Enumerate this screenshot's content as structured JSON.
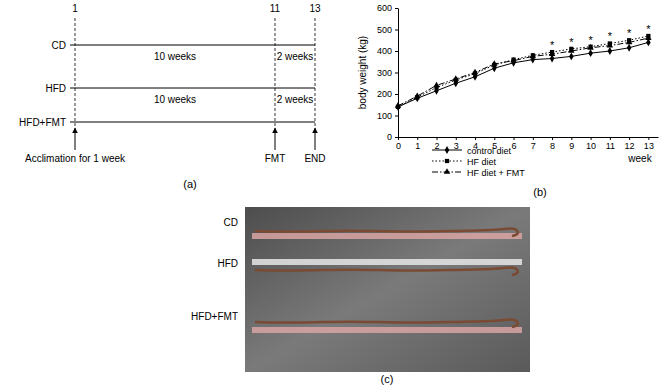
{
  "chart_data": {
    "type": "line",
    "x_label": "week",
    "y_label": "body weight (kg)",
    "x": [
      0,
      1,
      2,
      3,
      4,
      5,
      6,
      7,
      8,
      9,
      10,
      11,
      12,
      13
    ],
    "series": [
      {
        "name": "control diet",
        "color": "#000000",
        "marker": "diamond",
        "line_style": "solid",
        "values": [
          140,
          180,
          215,
          250,
          280,
          320,
          345,
          360,
          365,
          375,
          390,
          400,
          415,
          440
        ]
      },
      {
        "name": "HF diet",
        "color": "#000000",
        "marker": "square",
        "line_style": "dotted",
        "values": [
          140,
          185,
          230,
          265,
          295,
          335,
          360,
          380,
          395,
          410,
          420,
          435,
          450,
          470
        ]
      },
      {
        "name": "HF diet + FMT",
        "color": "#000000",
        "marker": "triangle",
        "line_style": "dashdot",
        "values": [
          145,
          190,
          240,
          270,
          300,
          340,
          355,
          375,
          385,
          400,
          415,
          425,
          440,
          460
        ]
      }
    ],
    "xlim": [
      0,
      13.5
    ],
    "xticks": [
      0,
      1,
      2,
      3,
      4,
      5,
      6,
      7,
      8,
      9,
      10,
      11,
      12,
      13
    ],
    "ylim": [
      0,
      600
    ],
    "yticks": [
      0,
      100,
      200,
      300,
      400,
      500,
      600
    ],
    "legend": "bottom",
    "annotations": [
      {
        "x": 8,
        "text": "*"
      },
      {
        "x": 9,
        "text": "*"
      },
      {
        "x": 10,
        "text": "*"
      },
      {
        "x": 11,
        "text": "*"
      },
      {
        "x": 12,
        "text": "*"
      },
      {
        "x": 13,
        "text": "*"
      }
    ],
    "panel_label": "(b)"
  },
  "timeline": {
    "weeks": [
      1,
      11,
      13
    ],
    "rows": [
      {
        "label": "CD",
        "phases": [
          "10 weeks",
          "2 weeks"
        ]
      },
      {
        "label": "HFD",
        "phases": [
          "10 weeks",
          "2 weeks"
        ]
      },
      {
        "label": "HFD+FMT",
        "phases": []
      }
    ],
    "events": [
      {
        "week": 1,
        "label": "Acclimation for 1 week"
      },
      {
        "week": 11,
        "label": "FMT"
      },
      {
        "week": 13,
        "label": "END"
      }
    ],
    "panel_label": "(a)"
  },
  "photo": {
    "rows": [
      "CD",
      "HFD",
      "HFD+FMT"
    ],
    "panel_label": "(c)"
  }
}
